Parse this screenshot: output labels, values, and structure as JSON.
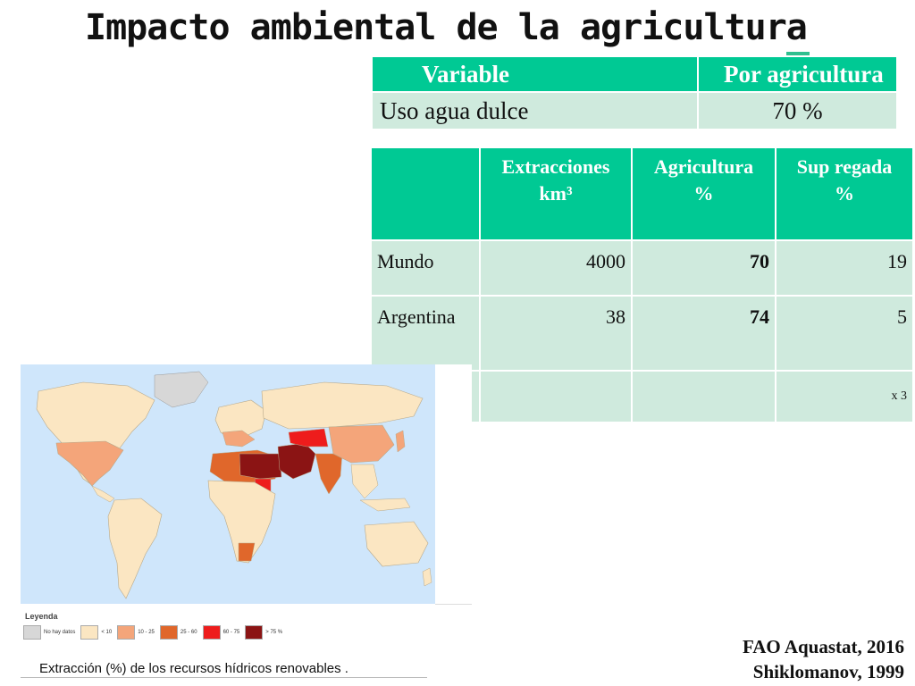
{
  "title": "Impacto ambiental de la agricultura",
  "accent_color": "#00c994",
  "cell_color": "#cfeadd",
  "table1": {
    "headers": [
      "Variable",
      "Por agricultura"
    ],
    "rows": [
      [
        "Uso agua dulce",
        "70 %"
      ]
    ]
  },
  "table2": {
    "headers": [
      "",
      "Extracciones km³",
      "Agricultura %",
      "Sup regada %"
    ],
    "header_lines": {
      "col1": [
        "Extracciones",
        "km³"
      ],
      "col2": [
        "Agricultura",
        "%"
      ],
      "col3": [
        "Sup regada",
        "%"
      ]
    },
    "rows": [
      {
        "label": "Mundo",
        "extracciones": "4000",
        "agricultura": "70",
        "sup_regada": "19"
      },
      {
        "label": "Argentina",
        "extracciones": "38",
        "agricultura": "74",
        "sup_regada": "5"
      }
    ],
    "footer_note": "x 3"
  },
  "map": {
    "legend_title": "Leyenda",
    "legend": [
      {
        "label": "No hay datos",
        "color": "#d7d7d7"
      },
      {
        "label": "< 10",
        "color": "#fbe6c2"
      },
      {
        "label": "10 - 25",
        "color": "#f4a57a"
      },
      {
        "label": "25 - 60",
        "color": "#e0672b"
      },
      {
        "label": "60 - 75",
        "color": "#ee1c1c"
      },
      {
        "label": "> 75 %",
        "color": "#8b1414"
      }
    ],
    "ocean_color": "#cfe6fb",
    "caption": "Extracción (%) de los recursos hídricos renovables ."
  },
  "sources": [
    "FAO Aquastat, 2016",
    "Shiklomanov, 1999"
  ]
}
